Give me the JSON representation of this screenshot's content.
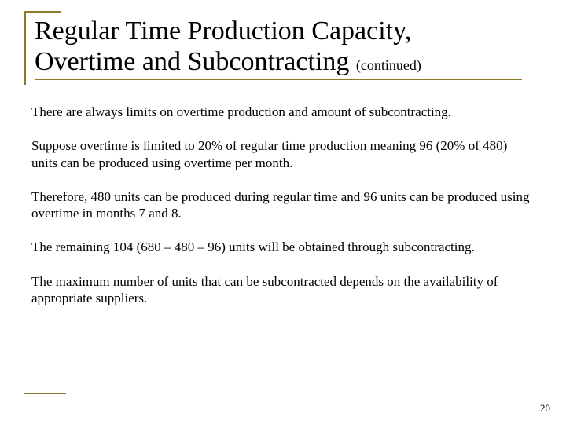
{
  "colors": {
    "accent": "#8a7a2a",
    "text": "#000000",
    "background": "#ffffff"
  },
  "title": {
    "line1": "Regular Time Production Capacity,",
    "line2_main": "Overtime and Subcontracting ",
    "line2_cont": "(continued)"
  },
  "paragraphs": {
    "p1": "There are always limits on overtime production and amount of subcontracting.",
    "p2": "Suppose overtime is limited to 20% of regular time production meaning 96 (20% of 480) units can be produced using overtime per month.",
    "p3": "Therefore, 480 units can be produced during regular time and 96 units can be produced using overtime in months 7 and 8.",
    "p4": "The remaining 104 (680 – 480 – 96) units will be obtained through subcontracting.",
    "p5": "The maximum number of units that can be subcontracted depends on the availability of appropriate suppliers."
  },
  "page_number": "20"
}
